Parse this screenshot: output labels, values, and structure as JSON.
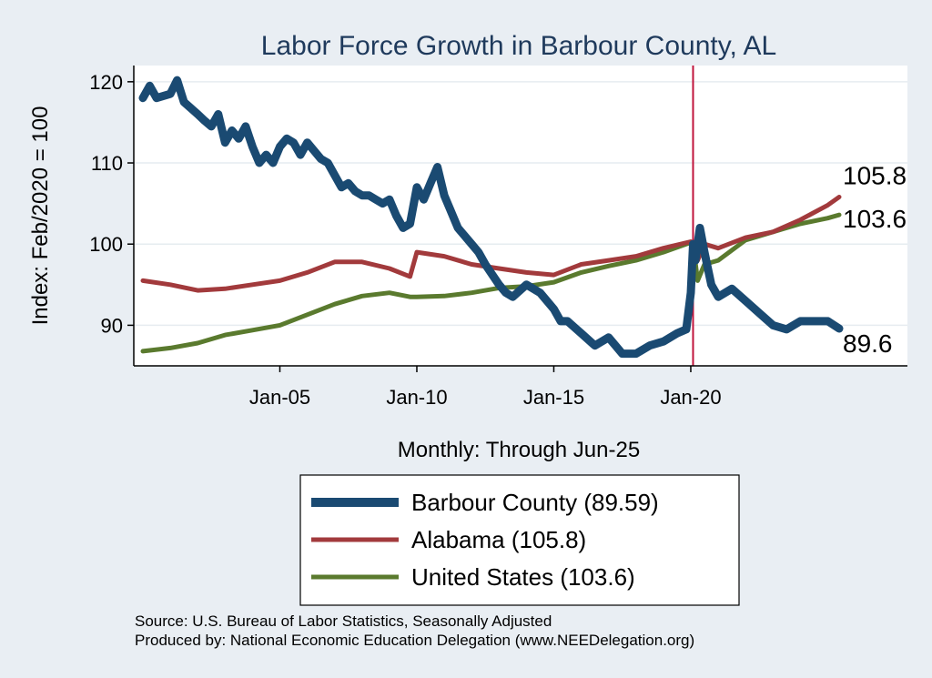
{
  "chart_data": {
    "type": "line",
    "title": "Labor Force Growth in Barbour  County, AL",
    "xlabel": "Monthly: Through Jun-25",
    "ylabel": "Index: Feb/2020 = 100",
    "x_range": [
      "2000-01",
      "2025-06"
    ],
    "ylim": [
      85,
      122
    ],
    "y_ticks": [
      90,
      100,
      110,
      120
    ],
    "x_ticks": [
      {
        "label": "Jan-05",
        "date": "2005-01"
      },
      {
        "label": "Jan-10",
        "date": "2010-01"
      },
      {
        "label": "Jan-15",
        "date": "2015-01"
      },
      {
        "label": "Jan-20",
        "date": "2020-01"
      }
    ],
    "reference_line": {
      "date": "2020-02",
      "color": "#c0143c"
    },
    "grid": true,
    "legend_position": "bottom",
    "series": [
      {
        "name": "Barbour  County",
        "legend_label": "Barbour  County (89.59)",
        "end_label": "89.6",
        "color": "#1a4a72",
        "points": [
          [
            "2000-01",
            118.0
          ],
          [
            "2000-04",
            119.5
          ],
          [
            "2000-07",
            118.0
          ],
          [
            "2001-01",
            118.5
          ],
          [
            "2001-04",
            120.2
          ],
          [
            "2001-07",
            117.5
          ],
          [
            "2002-01",
            116.0
          ],
          [
            "2002-04",
            115.2
          ],
          [
            "2002-07",
            114.5
          ],
          [
            "2002-10",
            116.0
          ],
          [
            "2003-01",
            112.5
          ],
          [
            "2003-04",
            114.0
          ],
          [
            "2003-07",
            113.0
          ],
          [
            "2003-10",
            114.5
          ],
          [
            "2004-01",
            112.0
          ],
          [
            "2004-04",
            110.0
          ],
          [
            "2004-07",
            111.0
          ],
          [
            "2004-10",
            110.0
          ],
          [
            "2005-01",
            112.0
          ],
          [
            "2005-04",
            113.0
          ],
          [
            "2005-07",
            112.5
          ],
          [
            "2005-10",
            111.0
          ],
          [
            "2006-01",
            112.5
          ],
          [
            "2006-04",
            111.5
          ],
          [
            "2006-07",
            110.5
          ],
          [
            "2006-10",
            110.0
          ],
          [
            "2007-01",
            108.5
          ],
          [
            "2007-04",
            107.0
          ],
          [
            "2007-07",
            107.5
          ],
          [
            "2007-10",
            106.5
          ],
          [
            "2008-01",
            106.0
          ],
          [
            "2008-04",
            106.0
          ],
          [
            "2008-07",
            105.5
          ],
          [
            "2008-10",
            105.0
          ],
          [
            "2009-01",
            105.5
          ],
          [
            "2009-04",
            103.5
          ],
          [
            "2009-07",
            102.0
          ],
          [
            "2009-10",
            102.5
          ],
          [
            "2010-01",
            107.0
          ],
          [
            "2010-04",
            105.5
          ],
          [
            "2010-07",
            107.5
          ],
          [
            "2010-10",
            109.5
          ],
          [
            "2011-01",
            106.0
          ],
          [
            "2011-04",
            104.0
          ],
          [
            "2011-07",
            102.0
          ],
          [
            "2012-01",
            100.0
          ],
          [
            "2012-04",
            99.0
          ],
          [
            "2012-07",
            97.5
          ],
          [
            "2013-01",
            95.0
          ],
          [
            "2013-04",
            94.0
          ],
          [
            "2013-07",
            93.5
          ],
          [
            "2014-01",
            95.0
          ],
          [
            "2014-07",
            94.0
          ],
          [
            "2015-01",
            92.0
          ],
          [
            "2015-04",
            90.5
          ],
          [
            "2015-07",
            90.5
          ],
          [
            "2016-01",
            89.0
          ],
          [
            "2016-07",
            87.5
          ],
          [
            "2017-01",
            88.5
          ],
          [
            "2017-07",
            86.5
          ],
          [
            "2018-01",
            86.5
          ],
          [
            "2018-07",
            87.5
          ],
          [
            "2019-01",
            88.0
          ],
          [
            "2019-07",
            89.0
          ],
          [
            "2019-11",
            89.5
          ],
          [
            "2020-01",
            94.0
          ],
          [
            "2020-02",
            100.0
          ],
          [
            "2020-03",
            98.0
          ],
          [
            "2020-05",
            102.0
          ],
          [
            "2020-07",
            99.0
          ],
          [
            "2020-10",
            95.0
          ],
          [
            "2021-01",
            93.5
          ],
          [
            "2021-07",
            94.5
          ],
          [
            "2022-01",
            93.0
          ],
          [
            "2022-07",
            91.5
          ],
          [
            "2023-01",
            90.0
          ],
          [
            "2023-07",
            89.5
          ],
          [
            "2024-01",
            90.5
          ],
          [
            "2024-07",
            90.5
          ],
          [
            "2025-01",
            90.5
          ],
          [
            "2025-06",
            89.6
          ]
        ]
      },
      {
        "name": "Alabama",
        "legend_label": "Alabama (105.8)",
        "end_label": "105.8",
        "color": "#a23a3c",
        "points": [
          [
            "2000-01",
            95.5
          ],
          [
            "2001-01",
            95.0
          ],
          [
            "2002-01",
            94.3
          ],
          [
            "2003-01",
            94.5
          ],
          [
            "2004-01",
            95.0
          ],
          [
            "2005-01",
            95.5
          ],
          [
            "2006-01",
            96.5
          ],
          [
            "2007-01",
            97.8
          ],
          [
            "2008-01",
            97.8
          ],
          [
            "2009-01",
            97.0
          ],
          [
            "2009-10",
            96.0
          ],
          [
            "2010-01",
            99.0
          ],
          [
            "2011-01",
            98.5
          ],
          [
            "2012-01",
            97.5
          ],
          [
            "2013-01",
            97.0
          ],
          [
            "2014-01",
            96.5
          ],
          [
            "2015-01",
            96.2
          ],
          [
            "2016-01",
            97.5
          ],
          [
            "2017-01",
            98.0
          ],
          [
            "2018-01",
            98.5
          ],
          [
            "2019-01",
            99.5
          ],
          [
            "2020-01",
            100.3
          ],
          [
            "2020-02",
            100.0
          ],
          [
            "2020-04",
            98.0
          ],
          [
            "2020-07",
            100.0
          ],
          [
            "2021-01",
            99.5
          ],
          [
            "2022-01",
            100.8
          ],
          [
            "2023-01",
            101.5
          ],
          [
            "2024-01",
            103.0
          ],
          [
            "2025-01",
            104.8
          ],
          [
            "2025-06",
            105.8
          ]
        ]
      },
      {
        "name": "United States",
        "legend_label": "United States (103.6)",
        "end_label": "103.6",
        "color": "#5a7a2e",
        "points": [
          [
            "2000-01",
            86.8
          ],
          [
            "2001-01",
            87.2
          ],
          [
            "2002-01",
            87.8
          ],
          [
            "2003-01",
            88.8
          ],
          [
            "2004-01",
            89.4
          ],
          [
            "2005-01",
            90.0
          ],
          [
            "2006-01",
            91.3
          ],
          [
            "2007-01",
            92.6
          ],
          [
            "2008-01",
            93.6
          ],
          [
            "2009-01",
            94.0
          ],
          [
            "2009-10",
            93.5
          ],
          [
            "2010-01",
            93.5
          ],
          [
            "2011-01",
            93.6
          ],
          [
            "2012-01",
            94.0
          ],
          [
            "2013-01",
            94.6
          ],
          [
            "2014-01",
            94.8
          ],
          [
            "2015-01",
            95.3
          ],
          [
            "2016-01",
            96.5
          ],
          [
            "2017-01",
            97.3
          ],
          [
            "2018-01",
            98.0
          ],
          [
            "2019-01",
            99.0
          ],
          [
            "2020-01",
            100.2
          ],
          [
            "2020-02",
            100.0
          ],
          [
            "2020-04",
            95.5
          ],
          [
            "2020-07",
            97.5
          ],
          [
            "2021-01",
            98.0
          ],
          [
            "2022-01",
            100.5
          ],
          [
            "2023-01",
            101.5
          ],
          [
            "2024-01",
            102.5
          ],
          [
            "2025-01",
            103.2
          ],
          [
            "2025-06",
            103.6
          ]
        ]
      }
    ]
  },
  "footer": {
    "source": "Source: U.S. Bureau of Labor Statistics, Seasonally Adjusted",
    "produced_by": "Produced by: National Economic Education Delegation (www.NEEDelegation.org)"
  }
}
